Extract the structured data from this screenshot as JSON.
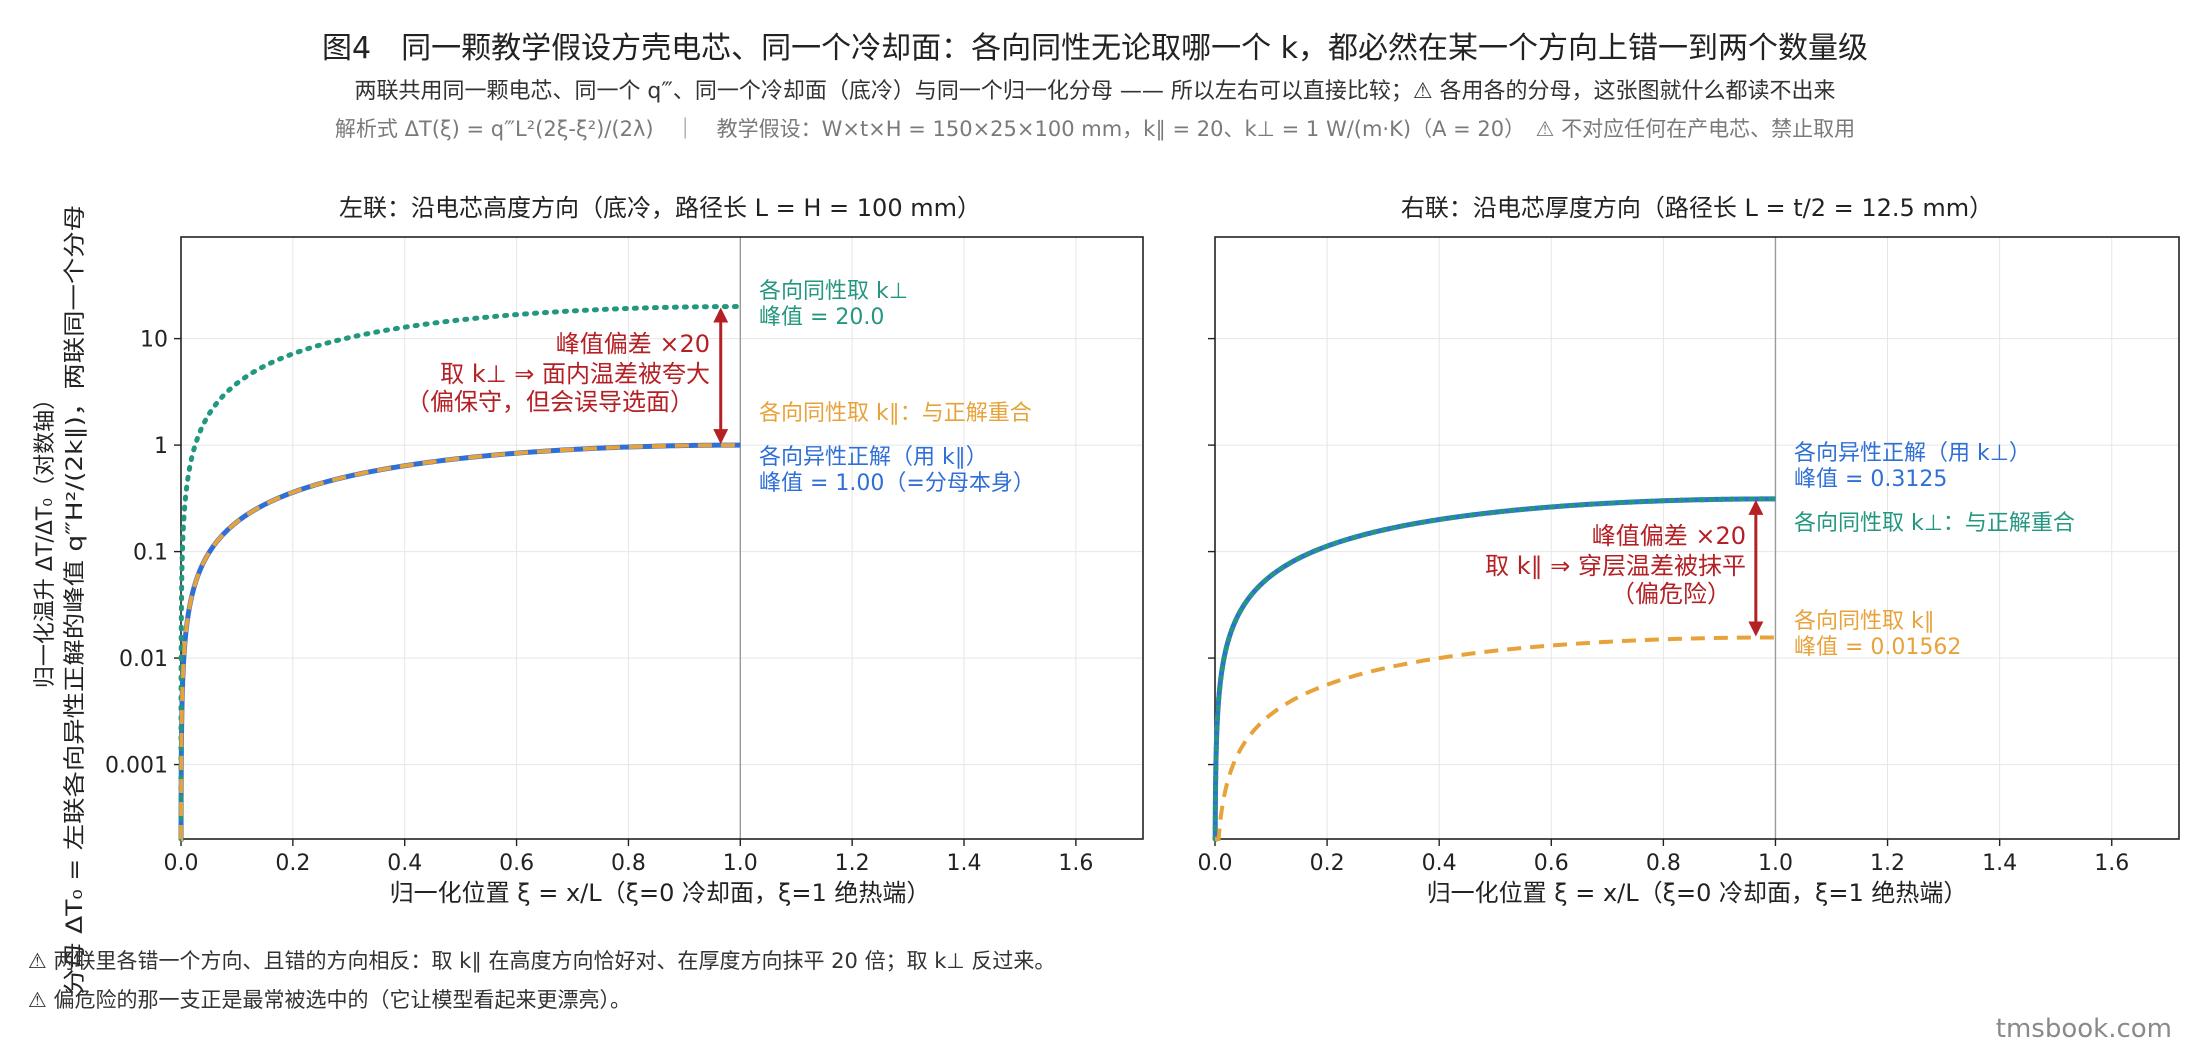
{
  "figure": {
    "title": "图4　同一颗教学假设方壳电芯、同一个冷却面：各向同性无论取哪一个 k，都必然在某一个方向上错一到两个数量级",
    "subtitle": "两联共用同一颗电芯、同一个 q‴、同一个冷却面（底冷）与同一个归一化分母 —— 所以左右可以直接比较；⚠ 各用各的分母，这张图就什么都读不出来",
    "formula_line": "解析式 ΔT(ξ) = q‴L²(2ξ-ξ²)/(2λ)　｜　教学假设：W×t×H = 150×25×100 mm，k∥ = 20、k⊥ = 1 W/(m·K)（A = 20）　⚠ 不对应任何在产电芯、禁止取用",
    "ylabel_line1": "分母 ΔT₀ = 左联各向异性正解的峰值 q‴H²/(2k∥)，两联同一个分母",
    "ylabel_line2": "归一化温升 ΔT/ΔT₀（对数轴）",
    "notes": [
      "⚠ 两联里各错一个方向、且错的方向相反：取 k∥ 在高度方向恰好对、在厚度方向抹平 20 倍；取 k⊥ 反过来。",
      "⚠ 偏危险的那一支正是最常被选中的（它让模型看起来更漂亮）。"
    ],
    "watermark": "tmsbook.com",
    "colors": {
      "blue": "#2f6fd6",
      "orange": "#e8a23a",
      "teal": "#23977f",
      "red": "#b52025",
      "grid": "#e6e6e6"
    }
  },
  "chart_data": [
    {
      "type": "line",
      "title": "左联：沿电芯高度方向（底冷，路径长 L = H = 100 mm）",
      "xlabel": "归一化位置 ξ = x/L（ξ=0 冷却面，ξ=1 绝热端）",
      "xlim": [
        0,
        1.72
      ],
      "ylim": [
        0.0002,
        90
      ],
      "yscale": "log",
      "xticks": [
        "0.0",
        "0.2",
        "0.4",
        "0.6",
        "0.8",
        "1.0",
        "1.2",
        "1.4",
        "1.6"
      ],
      "yticks": [
        "0.001",
        "0.01",
        "0.1",
        "1",
        "10"
      ],
      "grid": true,
      "series": [
        {
          "name": "各向同性取 k⊥",
          "style": "dotted",
          "color": "#23977f",
          "peak": 20.0
        },
        {
          "name": "各向异性正解（用 k∥）",
          "style": "solid",
          "color": "#2f6fd6",
          "peak": 1.0
        },
        {
          "name": "各向同性取 k∥：与正解重合",
          "style": "dashed",
          "color": "#e8a23a",
          "peak": 1.0
        }
      ],
      "annotations": {
        "top_label": "各向同性取 k⊥",
        "top_peak": "峰值 = 20.0",
        "mid_label": "各向同性取 k∥：与正解重合",
        "bottom_label": "各向异性正解（用 k∥）",
        "bottom_peak": "峰值 = 1.00（=分母本身）",
        "arrow_line1": "峰值偏差 ×20",
        "arrow_line2": "取 k⊥ ⇒ 面内温差被夸大",
        "arrow_line3": "（偏保守，但会误导选面）"
      }
    },
    {
      "type": "line",
      "title": "右联：沿电芯厚度方向（路径长 L = t/2 = 12.5 mm）",
      "xlabel": "归一化位置 ξ = x/L（ξ=0 冷却面，ξ=1 绝热端）",
      "xlim": [
        0,
        1.72
      ],
      "ylim": [
        0.0002,
        90
      ],
      "yscale": "log",
      "xticks": [
        "0.0",
        "0.2",
        "0.4",
        "0.6",
        "0.8",
        "1.0",
        "1.2",
        "1.4",
        "1.6"
      ],
      "grid": true,
      "series": [
        {
          "name": "各向异性正解（用 k⊥）",
          "style": "solid",
          "color": "#2f6fd6",
          "peak": 0.3125
        },
        {
          "name": "各向同性取 k⊥：与正解重合",
          "style": "dotted",
          "color": "#23977f",
          "peak": 0.3125
        },
        {
          "name": "各向同性取 k∥",
          "style": "dashed",
          "color": "#e8a23a",
          "peak": 0.01562
        }
      ],
      "annotations": {
        "top_label": "各向异性正解（用 k⊥）",
        "top_peak": "峰值 = 0.3125",
        "mid_label": "各向同性取 k⊥：与正解重合",
        "bottom_label": "各向同性取 k∥",
        "bottom_peak": "峰值 = 0.01562",
        "arrow_line1": "峰值偏差 ×20",
        "arrow_line2": "取 k∥ ⇒ 穿层温差被抹平",
        "arrow_line3": "（偏危险）"
      }
    }
  ]
}
